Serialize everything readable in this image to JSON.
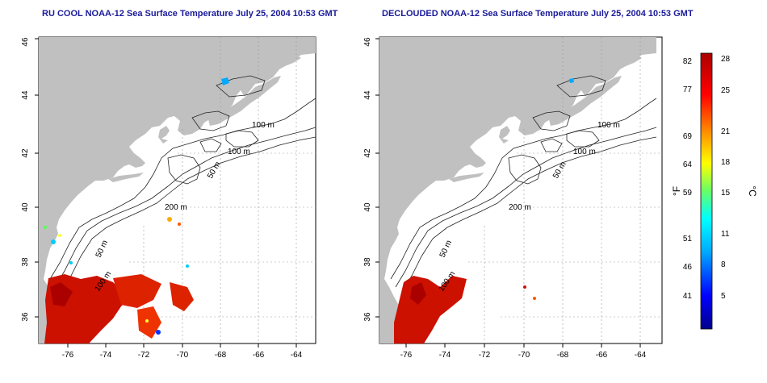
{
  "maps": [
    {
      "title": "RU COOL NOAA-12 Sea Surface Temperature July 25, 2004 10:53 GMT",
      "x_ticks": [
        "-76",
        "-74",
        "-72",
        "-70",
        "-68",
        "-66",
        "-64"
      ],
      "y_ticks": [
        "36",
        "38",
        "40",
        "42",
        "44",
        "46"
      ],
      "contour_labels": [
        "100 m",
        "100 m",
        "50 m",
        "200 m",
        "50 m",
        "100 m"
      ]
    },
    {
      "title": "DECLOUDED NOAA-12 Sea Surface Temperature July 25, 2004 10:53 GMT",
      "x_ticks": [
        "-76",
        "-74",
        "-72",
        "-70",
        "-68",
        "-66",
        "-64"
      ],
      "y_ticks": [
        "36",
        "38",
        "40",
        "42",
        "44",
        "46"
      ],
      "contour_labels": [
        "100 m",
        "100 m",
        "50 m",
        "200 m",
        "50 m",
        "100 m"
      ]
    }
  ],
  "colorbar": {
    "fahrenheit_ticks": [
      "82",
      "77",
      "69",
      "64",
      "59",
      "51",
      "46",
      "41"
    ],
    "celsius_ticks": [
      "28",
      "25",
      "21",
      "18",
      "15",
      "11",
      "8",
      "5"
    ],
    "unit_f": "°F",
    "unit_c": "°C",
    "colors": [
      "#00008b",
      "#0000ff",
      "#00aaff",
      "#00ffff",
      "#55ff55",
      "#ffff00",
      "#ff8800",
      "#ff0000",
      "#aa0000"
    ]
  },
  "colors": {
    "land": "#c0c0c0",
    "ocean": "#ffffff",
    "sst_hot": "#cc1100",
    "title": "#1a1a9a"
  }
}
